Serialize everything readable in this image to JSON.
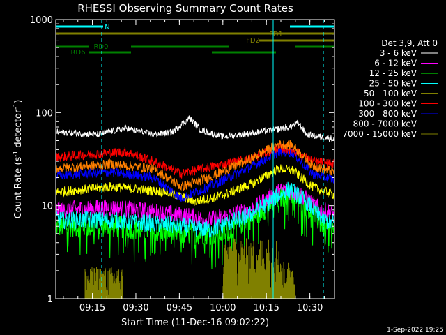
{
  "chart_data": {
    "type": "line",
    "title": "RHESSI Observing Summary Count Rates",
    "xlabel": "Start Time (11-Dec-16 09:02:22)",
    "ylabel": "Count Rate (s",
    "ylabel_sup": "-1",
    "ylabel_tail": " detector",
    "ylabel_sup2": "-1",
    "ylabel_close": ")",
    "y_scale": "log",
    "ylim": [
      1,
      1000
    ],
    "xlim_minutes": [
      9.04,
      10.64
    ],
    "y_ticks": [
      {
        "value": 1,
        "label": "1"
      },
      {
        "value": 10,
        "label": "10"
      },
      {
        "value": 100,
        "label": "100"
      },
      {
        "value": 1000,
        "label": "1000"
      }
    ],
    "x_ticks": [
      {
        "value": "09:15",
        "label": "09:15"
      },
      {
        "value": "09:30",
        "label": "09:30"
      },
      {
        "value": "09:45",
        "label": "09:45"
      },
      {
        "value": "10:00",
        "label": "10:00"
      },
      {
        "value": "10:15",
        "label": "10:15"
      },
      {
        "value": "10:30",
        "label": "10:30"
      }
    ],
    "legend_header": "Det 3,9, Att 0",
    "legend_placement": "right",
    "series": [
      {
        "name": "3 - 6 keV",
        "color": "#ffffff",
        "profile": [
          [
            0,
            62
          ],
          [
            15,
            58
          ],
          [
            25,
            68
          ],
          [
            35,
            58
          ],
          [
            42,
            62
          ],
          [
            48,
            88
          ],
          [
            52,
            65
          ],
          [
            60,
            55
          ],
          [
            70,
            60
          ],
          [
            78,
            65
          ],
          [
            84,
            70
          ],
          [
            87,
            78
          ],
          [
            90,
            58
          ],
          [
            95,
            55
          ],
          [
            100,
            52
          ]
        ]
      },
      {
        "name": "6 - 12 keV",
        "color": "#ff00ff",
        "profile": [
          [
            0,
            9
          ],
          [
            20,
            9.5
          ],
          [
            45,
            8
          ],
          [
            55,
            7
          ],
          [
            70,
            9
          ],
          [
            78,
            13
          ],
          [
            82,
            15
          ],
          [
            88,
            13
          ],
          [
            95,
            9
          ],
          [
            100,
            8
          ]
        ]
      },
      {
        "name": "12 - 25 keV",
        "color": "#00ff00",
        "profile": [
          [
            0,
            6
          ],
          [
            20,
            6
          ],
          [
            45,
            5
          ],
          [
            60,
            5
          ],
          [
            72,
            8
          ],
          [
            80,
            12
          ],
          [
            84,
            14
          ],
          [
            90,
            10
          ],
          [
            96,
            6
          ],
          [
            100,
            5.5
          ]
        ]
      },
      {
        "name": "25 - 50 keV",
        "color": "#00ffff",
        "profile": [
          [
            0,
            7
          ],
          [
            20,
            7
          ],
          [
            45,
            6
          ],
          [
            55,
            5.5
          ],
          [
            70,
            8
          ],
          [
            80,
            13
          ],
          [
            84,
            15
          ],
          [
            90,
            11
          ],
          [
            96,
            7
          ],
          [
            100,
            6.5
          ]
        ]
      },
      {
        "name": "50 - 100 keV",
        "color": "#ffff00",
        "profile": [
          [
            0,
            14
          ],
          [
            20,
            16
          ],
          [
            40,
            14
          ],
          [
            50,
            11
          ],
          [
            60,
            13
          ],
          [
            70,
            17
          ],
          [
            80,
            25
          ],
          [
            85,
            24
          ],
          [
            92,
            16
          ],
          [
            100,
            13
          ]
        ]
      },
      {
        "name": "100 - 300 keV",
        "color": "#ff0000",
        "profile": [
          [
            0,
            33
          ],
          [
            15,
            36
          ],
          [
            25,
            38
          ],
          [
            35,
            30
          ],
          [
            45,
            22
          ],
          [
            55,
            26
          ],
          [
            70,
            32
          ],
          [
            80,
            42
          ],
          [
            85,
            40
          ],
          [
            92,
            30
          ],
          [
            100,
            28
          ]
        ]
      },
      {
        "name": "300 - 800 keV",
        "color": "#0000ff",
        "profile": [
          [
            0,
            21
          ],
          [
            20,
            23
          ],
          [
            35,
            20
          ],
          [
            45,
            12
          ],
          [
            55,
            16
          ],
          [
            70,
            26
          ],
          [
            80,
            38
          ],
          [
            85,
            37
          ],
          [
            92,
            22
          ],
          [
            100,
            19
          ]
        ]
      },
      {
        "name": "800 - 7000 keV",
        "color": "#ff8000",
        "profile": [
          [
            0,
            25
          ],
          [
            20,
            28
          ],
          [
            35,
            25
          ],
          [
            45,
            16
          ],
          [
            55,
            20
          ],
          [
            70,
            32
          ],
          [
            80,
            46
          ],
          [
            85,
            44
          ],
          [
            92,
            27
          ],
          [
            100,
            23
          ]
        ]
      },
      {
        "name": "7000 - 15000 keV",
        "color": "#808000",
        "profile": [
          [
            0,
            1
          ],
          [
            100,
            1
          ]
        ]
      }
    ],
    "bursts": {
      "color": "#808000",
      "segments": [
        {
          "from": 10.5,
          "to": 24,
          "level": 2.2
        },
        {
          "from": 60,
          "to": 80,
          "level": 4.5
        },
        {
          "from": 80,
          "to": 86,
          "level": 2.5
        }
      ]
    },
    "flag_bars": [
      {
        "label": "N",
        "color": "#00ffff",
        "segments": [
          [
            0,
            17
          ],
          [
            84,
            100
          ]
        ],
        "y": 36
      },
      {
        "label": "FD1",
        "color": "#808000",
        "segments": [
          [
            0,
            100
          ]
        ],
        "y": 46
      },
      {
        "label": "FD2",
        "color": "#808000",
        "segments": [
          [
            73,
            100
          ]
        ],
        "y": 56
      },
      {
        "label": "RD0",
        "color": "#008000",
        "segments": [
          [
            0,
            12
          ],
          [
            27,
            62
          ],
          [
            86,
            100
          ]
        ],
        "y": 65
      },
      {
        "label": "RD6",
        "color": "#008000",
        "segments": [
          [
            12,
            27
          ],
          [
            56,
            79
          ]
        ],
        "y": 73
      }
    ],
    "vlines": [
      {
        "x": 16.5,
        "color": "#00ffff",
        "style": "dashed"
      },
      {
        "x": 78,
        "color": "#00ffff",
        "style": "solid"
      },
      {
        "x": 96,
        "color": "#00ffff",
        "style": "dashed"
      }
    ],
    "footer_date": "1-Sep-2022 19:25"
  }
}
